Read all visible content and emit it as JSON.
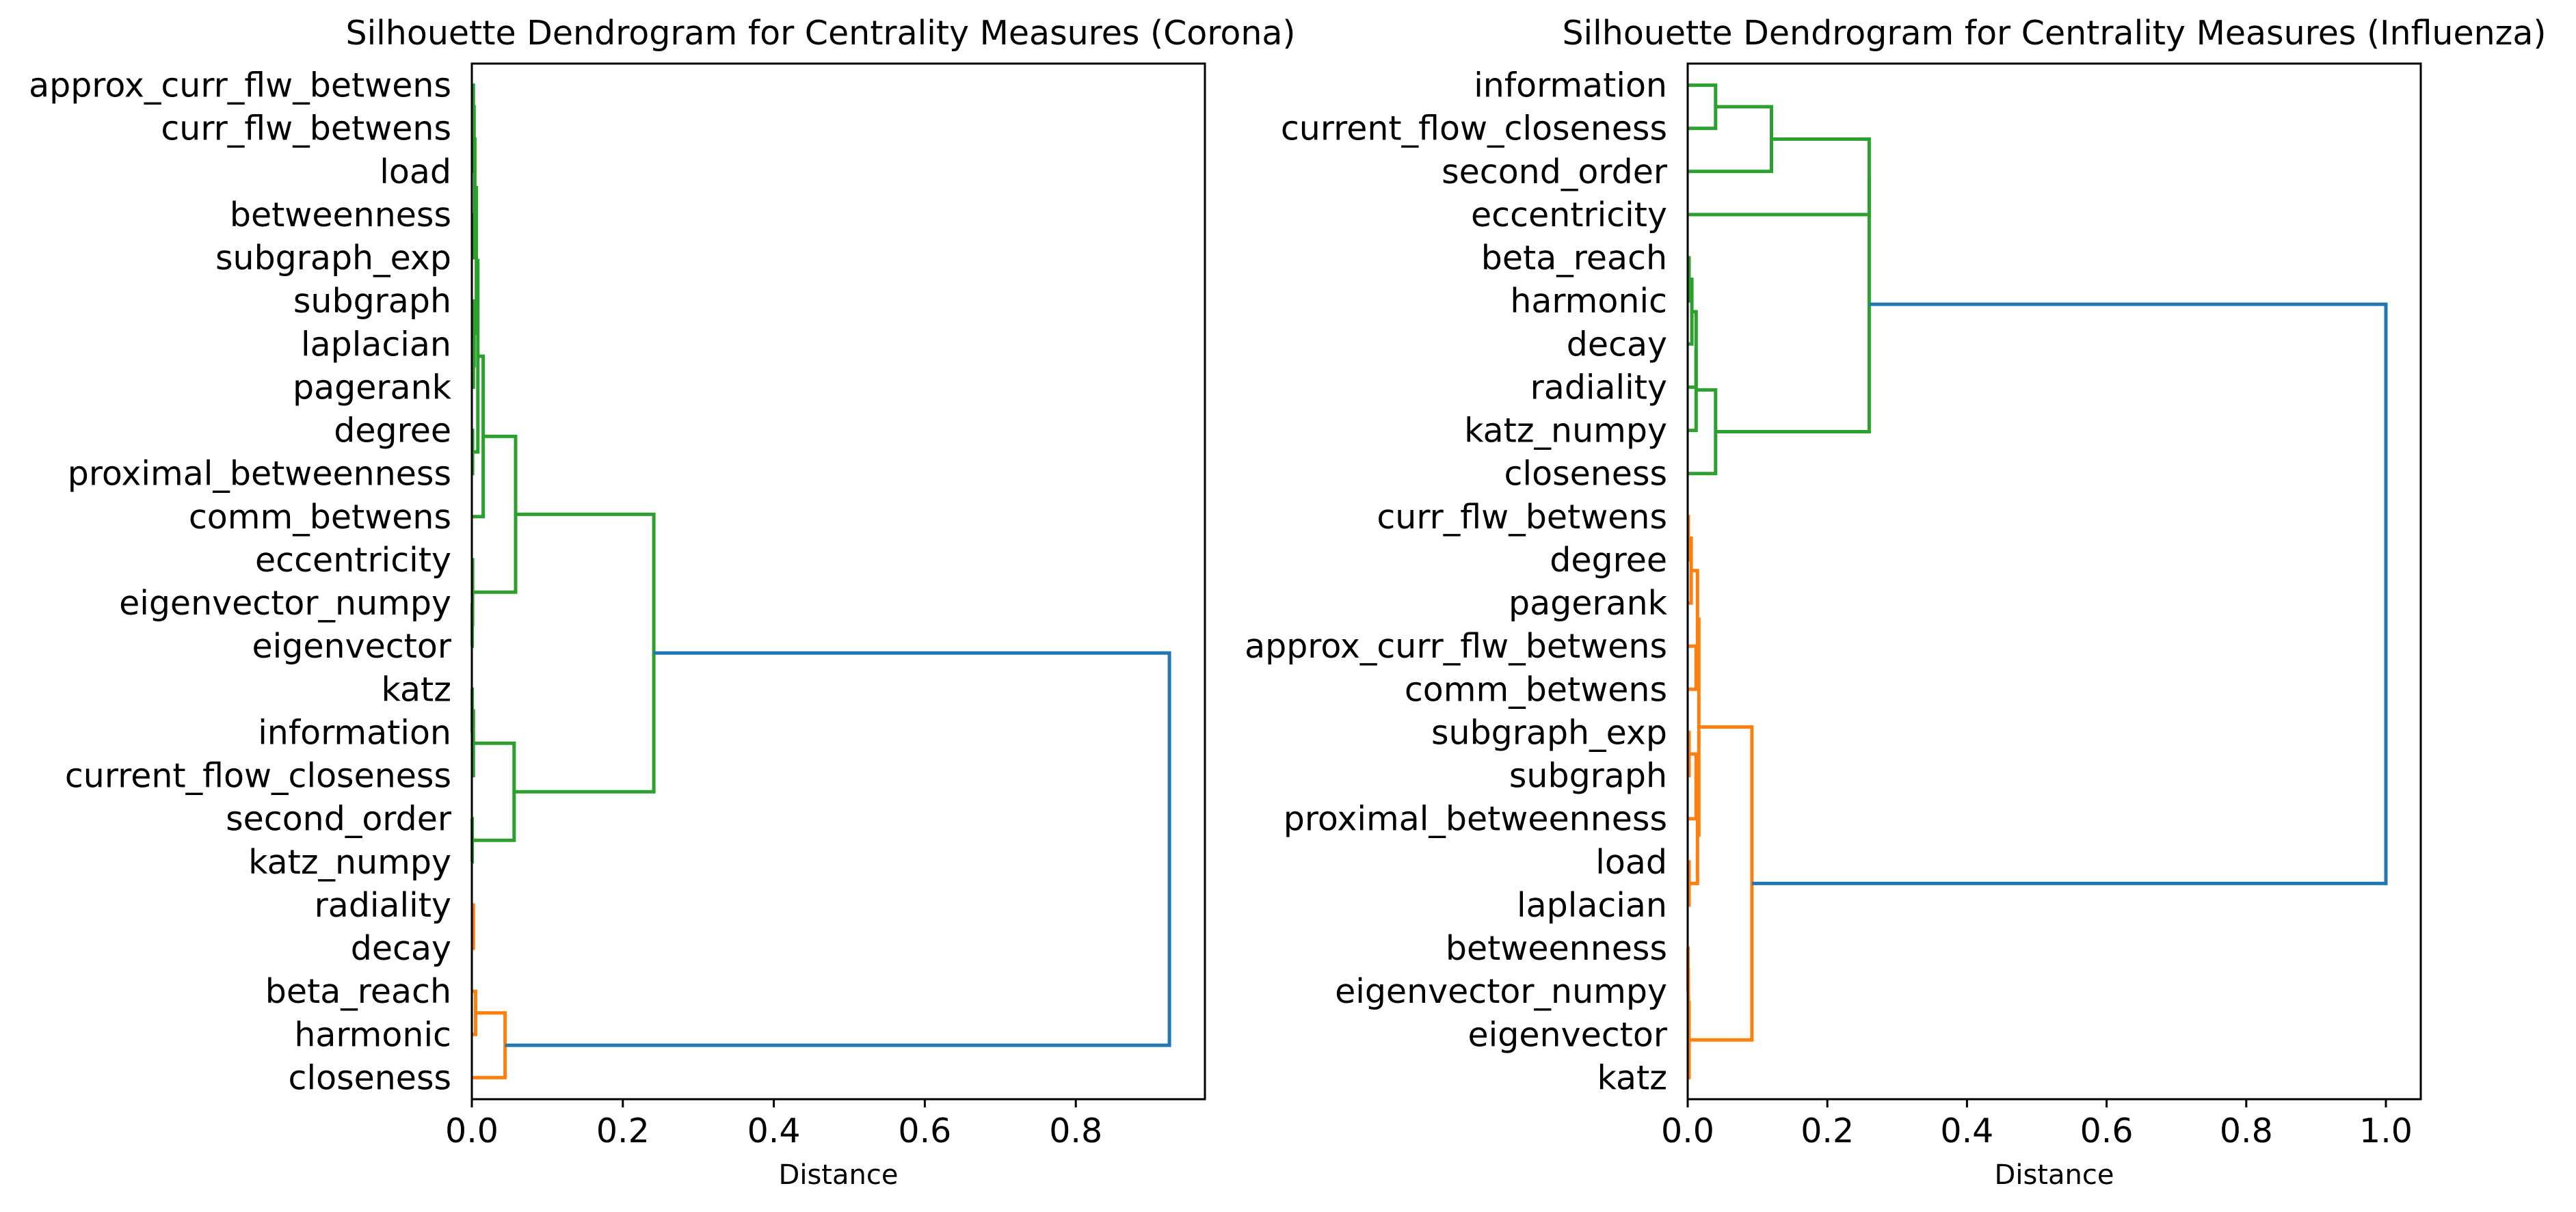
{
  "chart_data": [
    {
      "type": "dendrogram",
      "title": "Silhouette Dendrogram for Centrality Measures (Corona)",
      "xlabel": "Distance",
      "xlim": [
        0,
        0.971
      ],
      "x_ticks": [
        "0.0",
        "0.2",
        "0.4",
        "0.6",
        "0.8"
      ],
      "x_tick_values": [
        0.0,
        0.2,
        0.4,
        0.6,
        0.8
      ],
      "leaves": [
        "approx_curr_flw_betwens",
        "curr_flw_betwens",
        "load",
        "betweenness",
        "subgraph_exp",
        "subgraph",
        "laplacian",
        "pagerank",
        "degree",
        "proximal_betweenness",
        "comm_betwens",
        "eccentricity",
        "eigenvector_numpy",
        "eigenvector",
        "katz",
        "information",
        "current_flow_closeness",
        "second_order",
        "katz_numpy",
        "radiality",
        "decay",
        "beta_reach",
        "harmonic",
        "closeness"
      ],
      "colors": {
        "C0": "#1f77b4",
        "C1": "#ff7f0e",
        "C2": "#2ca02c"
      },
      "merges": [
        {
          "y1": 0.5,
          "y2": 1.5,
          "x1": 0.0,
          "x2": 0.0,
          "h": 0.002,
          "color": "C2"
        },
        {
          "y1": 1.0,
          "y2": 2.5,
          "x1": 0.002,
          "x2": 0.0,
          "h": 0.003,
          "color": "C2"
        },
        {
          "y1": 3.5,
          "y2": 4.5,
          "x1": 0.0,
          "x2": 0.0,
          "h": 0.002,
          "color": "C2"
        },
        {
          "y1": 1.75,
          "y2": 4.0,
          "x1": 0.003,
          "x2": 0.002,
          "h": 0.004,
          "color": "C2"
        },
        {
          "y1": 6.5,
          "y2": 7.5,
          "x1": 0.0,
          "x2": 0.0,
          "h": 0.002,
          "color": "C2"
        },
        {
          "y1": 5.5,
          "y2": 7.0,
          "x1": 0.0,
          "x2": 0.002,
          "h": 0.003,
          "color": "C2"
        },
        {
          "y1": 2.875,
          "y2": 6.25,
          "x1": 0.004,
          "x2": 0.003,
          "h": 0.006,
          "color": "C2"
        },
        {
          "y1": 8.5,
          "y2": 9.5,
          "x1": 0.0,
          "x2": 0.0,
          "h": 0.001,
          "color": "C2"
        },
        {
          "y1": 4.5625,
          "y2": 9.0,
          "x1": 0.006,
          "x2": 0.001,
          "h": 0.008,
          "color": "C2"
        },
        {
          "y1": 6.78125,
          "y2": 10.5,
          "x1": 0.008,
          "x2": 0.0,
          "h": 0.015,
          "color": "C2"
        },
        {
          "y1": 12.5,
          "y2": 13.5,
          "x1": 0.0,
          "x2": 0.0,
          "h": 0.0005,
          "color": "C2"
        },
        {
          "y1": 11.5,
          "y2": 13.0,
          "x1": 0.0,
          "x2": 0.0005,
          "h": 0.001,
          "color": "C2"
        },
        {
          "y1": 8.640625,
          "y2": 12.25,
          "x1": 0.015,
          "x2": 0.001,
          "h": 0.058,
          "color": "C2"
        },
        {
          "y1": 14.5,
          "y2": 15.5,
          "x1": 0.0,
          "x2": 0.0,
          "h": 0.0005,
          "color": "C2"
        },
        {
          "y1": 15.0,
          "y2": 16.5,
          "x1": 0.0005,
          "x2": 0.0,
          "h": 0.002,
          "color": "C2"
        },
        {
          "y1": 17.5,
          "y2": 18.5,
          "x1": 0.0,
          "x2": 0.0,
          "h": 0.0005,
          "color": "C2"
        },
        {
          "y1": 15.75,
          "y2": 18.0,
          "x1": 0.002,
          "x2": 0.0005,
          "h": 0.056,
          "color": "C2"
        },
        {
          "y1": 10.4453125,
          "y2": 16.875,
          "x1": 0.058,
          "x2": 0.056,
          "h": 0.241,
          "color": "C2"
        },
        {
          "y1": 19.5,
          "y2": 20.5,
          "x1": 0.0,
          "x2": 0.0,
          "h": 0.002,
          "color": "C1"
        },
        {
          "y1": 21.5,
          "y2": 22.5,
          "x1": 0.0,
          "x2": 0.0,
          "h": 0.005,
          "color": "C1"
        },
        {
          "y1": 22.0,
          "y2": 23.5,
          "x1": 0.005,
          "x2": 0.0,
          "h": 0.044,
          "color": "C1"
        },
        {
          "y1": 13.66015625,
          "y2": 22.75,
          "x1": 0.241,
          "x2": 0.044,
          "h": 0.924,
          "color": "C0"
        }
      ]
    },
    {
      "type": "dendrogram",
      "title": "Silhouette Dendrogram for Centrality Measures (Influenza)",
      "xlabel": "Distance",
      "xlim": [
        0,
        1.05
      ],
      "x_ticks": [
        "0.0",
        "0.2",
        "0.4",
        "0.6",
        "0.8",
        "1.0"
      ],
      "x_tick_values": [
        0.0,
        0.2,
        0.4,
        0.6,
        0.8,
        1.0
      ],
      "leaves": [
        "information",
        "current_flow_closeness",
        "second_order",
        "eccentricity",
        "beta_reach",
        "harmonic",
        "decay",
        "radiality",
        "katz_numpy",
        "closeness",
        "curr_flw_betwens",
        "degree",
        "pagerank",
        "approx_curr_flw_betwens",
        "comm_betwens",
        "subgraph_exp",
        "subgraph",
        "proximal_betweenness",
        "load",
        "laplacian",
        "betweenness",
        "eigenvector_numpy",
        "eigenvector",
        "katz"
      ],
      "colors": {
        "C0": "#1f77b4",
        "C1": "#ff7f0e",
        "C2": "#2ca02c"
      },
      "merges": [
        {
          "y1": 0.5,
          "y2": 1.5,
          "x1": 0.0,
          "x2": 0.0,
          "h": 0.04,
          "color": "C2"
        },
        {
          "y1": 1.0,
          "y2": 2.5,
          "x1": 0.04,
          "x2": 0.0,
          "h": 0.12,
          "color": "C2"
        },
        {
          "y1": 1.75,
          "y2": 3.5,
          "x1": 0.12,
          "x2": 0.0,
          "h": 0.26,
          "color": "C2"
        },
        {
          "y1": 4.5,
          "y2": 5.5,
          "x1": 0.0,
          "x2": 0.0,
          "h": 0.002,
          "color": "C2"
        },
        {
          "y1": 5.0,
          "y2": 6.5,
          "x1": 0.002,
          "x2": 0.0,
          "h": 0.006,
          "color": "C2"
        },
        {
          "y1": 5.75,
          "y2": 7.5,
          "x1": 0.006,
          "x2": 0.0,
          "h": 0.012,
          "color": "C2"
        },
        {
          "y1": 6.625,
          "y2": 8.5,
          "x1": 0.012,
          "x2": 0.0,
          "h": 0.012,
          "color": "C2"
        },
        {
          "y1": 7.5625,
          "y2": 9.5,
          "x1": 0.012,
          "x2": 0.0,
          "h": 0.04,
          "color": "C2"
        },
        {
          "y1": 2.625,
          "y2": 8.53125,
          "x1": 0.26,
          "x2": 0.04,
          "h": 0.26,
          "color": "C2"
        },
        {
          "y1": 10.5,
          "y2": 11.5,
          "x1": 0.0,
          "x2": 0.0,
          "h": 0.001,
          "color": "C1"
        },
        {
          "y1": 11.0,
          "y2": 12.5,
          "x1": 0.001,
          "x2": 0.0,
          "h": 0.005,
          "color": "C1"
        },
        {
          "y1": 13.5,
          "y2": 14.5,
          "x1": 0.0,
          "x2": 0.0,
          "h": 0.012,
          "color": "C1"
        },
        {
          "y1": 11.75,
          "y2": 14.0,
          "x1": 0.005,
          "x2": 0.012,
          "h": 0.014,
          "color": "C1"
        },
        {
          "y1": 15.5,
          "y2": 16.5,
          "x1": 0.0,
          "x2": 0.0,
          "h": 0.002,
          "color": "C1"
        },
        {
          "y1": 16.0,
          "y2": 17.5,
          "x1": 0.002,
          "x2": 0.0,
          "h": 0.012,
          "color": "C1"
        },
        {
          "y1": 18.5,
          "y2": 19.5,
          "x1": 0.0,
          "x2": 0.0,
          "h": 0.002,
          "color": "C1"
        },
        {
          "y1": 16.75,
          "y2": 19.0,
          "x1": 0.012,
          "x2": 0.002,
          "h": 0.014,
          "color": "C1"
        },
        {
          "y1": 12.875,
          "y2": 17.875,
          "x1": 0.014,
          "x2": 0.014,
          "h": 0.016,
          "color": "C1"
        },
        {
          "y1": 20.5,
          "y2": 21.5,
          "x1": 0.0,
          "x2": 0.0,
          "h": 0.0005,
          "color": "C1"
        },
        {
          "y1": 21.0,
          "y2": 22.5,
          "x1": 0.0005,
          "x2": 0.0,
          "h": 0.001,
          "color": "C1"
        },
        {
          "y1": 21.75,
          "y2": 23.5,
          "x1": 0.001,
          "x2": 0.0,
          "h": 0.002,
          "color": "C1"
        },
        {
          "y1": 15.375,
          "y2": 22.625,
          "x1": 0.016,
          "x2": 0.002,
          "h": 0.092,
          "color": "C1"
        },
        {
          "y1": 5.578125,
          "y2": 19.0,
          "x1": 0.26,
          "x2": 0.092,
          "h": 1.0,
          "color": "C0"
        }
      ]
    }
  ]
}
